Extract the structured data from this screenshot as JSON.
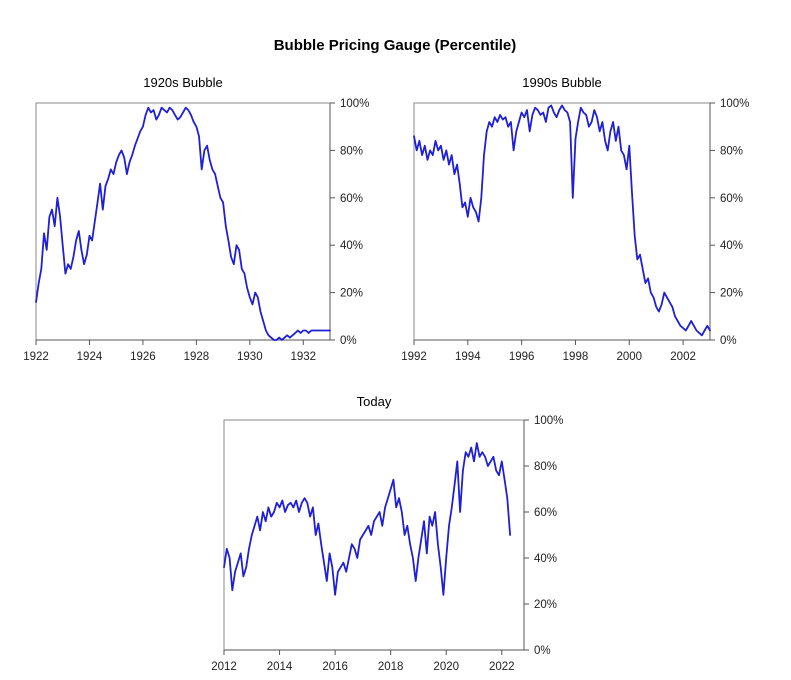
{
  "title": "Bubble Pricing Gauge (Percentile)",
  "colors": {
    "line": "#1f1fd6",
    "frame": "#8a8a8a"
  },
  "chart_data": [
    {
      "type": "line",
      "title": "1920s Bubble",
      "xlim": [
        1922,
        1933
      ],
      "ylim": [
        0,
        100
      ],
      "x_ticks": [
        1922,
        1924,
        1926,
        1928,
        1930,
        1932
      ],
      "y_ticks": [
        0,
        20,
        40,
        60,
        80,
        100
      ],
      "y_tick_labels": [
        "0%",
        "20%",
        "40%",
        "60%",
        "80%",
        "100%"
      ],
      "series": [
        {
          "x": [
            1922.0,
            1922.1,
            1922.2,
            1922.3,
            1922.4,
            1922.5,
            1922.6,
            1922.7,
            1922.8,
            1922.9,
            1923.0,
            1923.1,
            1923.2,
            1923.3,
            1923.4,
            1923.5,
            1923.6,
            1923.7,
            1923.8,
            1923.9,
            1924.0,
            1924.1,
            1924.2,
            1924.3,
            1924.4,
            1924.5,
            1924.6,
            1924.7,
            1924.8,
            1924.9,
            1925.0,
            1925.1,
            1925.2,
            1925.3,
            1925.4,
            1925.5,
            1925.6,
            1925.7,
            1925.8,
            1925.9,
            1926.0,
            1926.1,
            1926.2,
            1926.3,
            1926.4,
            1926.5,
            1926.6,
            1926.7,
            1926.8,
            1926.9,
            1927.0,
            1927.1,
            1927.2,
            1927.3,
            1927.4,
            1927.5,
            1927.6,
            1927.7,
            1927.8,
            1927.9,
            1928.0,
            1928.1,
            1928.2,
            1928.3,
            1928.4,
            1928.5,
            1928.6,
            1928.7,
            1928.8,
            1928.9,
            1929.0,
            1929.1,
            1929.2,
            1929.3,
            1929.4,
            1929.5,
            1929.6,
            1929.7,
            1929.8,
            1929.9,
            1930.0,
            1930.1,
            1930.2,
            1930.3,
            1930.4,
            1930.5,
            1930.6,
            1930.7,
            1930.8,
            1930.9,
            1931.0,
            1931.1,
            1931.2,
            1931.3,
            1931.4,
            1931.5,
            1931.6,
            1931.7,
            1931.8,
            1931.9,
            1932.0,
            1932.1,
            1932.2,
            1932.3,
            1932.4,
            1932.5,
            1932.6,
            1932.7,
            1932.8,
            1932.9,
            1933.0
          ],
          "y": [
            16,
            24,
            30,
            45,
            38,
            52,
            55,
            48,
            60,
            52,
            40,
            28,
            32,
            30,
            35,
            42,
            46,
            38,
            32,
            36,
            44,
            42,
            50,
            58,
            66,
            55,
            65,
            68,
            72,
            70,
            75,
            78,
            80,
            77,
            70,
            75,
            78,
            82,
            85,
            88,
            90,
            95,
            98,
            96,
            97,
            93,
            95,
            98,
            97,
            96,
            98,
            97,
            95,
            93,
            94,
            96,
            98,
            97,
            95,
            92,
            90,
            86,
            72,
            80,
            82,
            76,
            72,
            70,
            65,
            60,
            58,
            48,
            42,
            35,
            32,
            40,
            38,
            30,
            28,
            22,
            18,
            15,
            20,
            18,
            12,
            8,
            4,
            2,
            1,
            0,
            0,
            1,
            0,
            1,
            2,
            1,
            2,
            3,
            4,
            3,
            4,
            4,
            3,
            4,
            4,
            4,
            4,
            4,
            4,
            4,
            4
          ]
        }
      ]
    },
    {
      "type": "line",
      "title": "1990s Bubble",
      "xlim": [
        1992,
        2003
      ],
      "ylim": [
        0,
        100
      ],
      "x_ticks": [
        1992,
        1994,
        1996,
        1998,
        2000,
        2002
      ],
      "y_ticks": [
        0,
        20,
        40,
        60,
        80,
        100
      ],
      "y_tick_labels": [
        "0%",
        "20%",
        "40%",
        "60%",
        "80%",
        "100%"
      ],
      "series": [
        {
          "x": [
            1992.0,
            1992.1,
            1992.2,
            1992.3,
            1992.4,
            1992.5,
            1992.6,
            1992.7,
            1992.8,
            1992.9,
            1993.0,
            1993.1,
            1993.2,
            1993.3,
            1993.4,
            1993.5,
            1993.6,
            1993.7,
            1993.8,
            1993.9,
            1994.0,
            1994.1,
            1994.2,
            1994.3,
            1994.4,
            1994.5,
            1994.6,
            1994.7,
            1994.8,
            1994.9,
            1995.0,
            1995.1,
            1995.2,
            1995.3,
            1995.4,
            1995.5,
            1995.6,
            1995.7,
            1995.8,
            1995.9,
            1996.0,
            1996.1,
            1996.2,
            1996.3,
            1996.4,
            1996.5,
            1996.6,
            1996.7,
            1996.8,
            1996.9,
            1997.0,
            1997.1,
            1997.2,
            1997.3,
            1997.4,
            1997.5,
            1997.6,
            1997.7,
            1997.8,
            1997.9,
            1998.0,
            1998.1,
            1998.2,
            1998.3,
            1998.4,
            1998.5,
            1998.6,
            1998.7,
            1998.8,
            1998.9,
            1999.0,
            1999.1,
            1999.2,
            1999.3,
            1999.4,
            1999.5,
            1999.6,
            1999.7,
            1999.8,
            1999.9,
            2000.0,
            2000.1,
            2000.2,
            2000.3,
            2000.4,
            2000.5,
            2000.6,
            2000.7,
            2000.8,
            2000.9,
            2001.0,
            2001.1,
            2001.2,
            2001.3,
            2001.4,
            2001.5,
            2001.6,
            2001.7,
            2001.8,
            2001.9,
            2002.0,
            2002.1,
            2002.2,
            2002.3,
            2002.4,
            2002.5,
            2002.6,
            2002.7,
            2002.8,
            2002.9,
            2003.0
          ],
          "y": [
            86,
            80,
            84,
            78,
            82,
            76,
            80,
            78,
            84,
            80,
            82,
            76,
            80,
            74,
            78,
            70,
            74,
            66,
            56,
            58,
            52,
            60,
            56,
            54,
            50,
            60,
            78,
            88,
            92,
            90,
            94,
            92,
            95,
            93,
            94,
            90,
            92,
            80,
            88,
            92,
            96,
            94,
            97,
            88,
            95,
            98,
            97,
            95,
            96,
            92,
            98,
            99,
            96,
            94,
            97,
            99,
            97,
            96,
            92,
            60,
            85,
            92,
            98,
            96,
            95,
            90,
            92,
            97,
            94,
            88,
            92,
            84,
            80,
            88,
            92,
            84,
            90,
            80,
            78,
            72,
            82,
            62,
            44,
            34,
            36,
            30,
            24,
            26,
            20,
            18,
            14,
            12,
            15,
            20,
            18,
            16,
            14,
            10,
            8,
            6,
            5,
            4,
            6,
            8,
            6,
            4,
            3,
            2,
            4,
            6,
            4
          ]
        }
      ]
    },
    {
      "type": "line",
      "title": "Today",
      "xlim": [
        2012,
        2022.8
      ],
      "ylim": [
        0,
        100
      ],
      "x_ticks": [
        2012,
        2014,
        2016,
        2018,
        2020,
        2022
      ],
      "y_ticks": [
        0,
        20,
        40,
        60,
        80,
        100
      ],
      "y_tick_labels": [
        "0%",
        "20%",
        "40%",
        "60%",
        "80%",
        "100%"
      ],
      "series": [
        {
          "x": [
            2012.0,
            2012.1,
            2012.2,
            2012.3,
            2012.4,
            2012.5,
            2012.6,
            2012.7,
            2012.8,
            2012.9,
            2013.0,
            2013.1,
            2013.2,
            2013.3,
            2013.4,
            2013.5,
            2013.6,
            2013.7,
            2013.8,
            2013.9,
            2014.0,
            2014.1,
            2014.2,
            2014.3,
            2014.4,
            2014.5,
            2014.6,
            2014.7,
            2014.8,
            2014.9,
            2015.0,
            2015.1,
            2015.2,
            2015.3,
            2015.4,
            2015.5,
            2015.6,
            2015.7,
            2015.8,
            2015.9,
            2016.0,
            2016.1,
            2016.2,
            2016.3,
            2016.4,
            2016.5,
            2016.6,
            2016.7,
            2016.8,
            2016.9,
            2017.0,
            2017.1,
            2017.2,
            2017.3,
            2017.4,
            2017.5,
            2017.6,
            2017.7,
            2017.8,
            2017.9,
            2018.0,
            2018.1,
            2018.2,
            2018.3,
            2018.4,
            2018.5,
            2018.6,
            2018.7,
            2018.8,
            2018.9,
            2019.0,
            2019.1,
            2019.2,
            2019.3,
            2019.4,
            2019.5,
            2019.6,
            2019.7,
            2019.8,
            2019.9,
            2020.0,
            2020.1,
            2020.2,
            2020.3,
            2020.4,
            2020.5,
            2020.6,
            2020.7,
            2020.8,
            2020.9,
            2021.0,
            2021.1,
            2021.2,
            2021.3,
            2021.4,
            2021.5,
            2021.6,
            2021.7,
            2021.8,
            2021.9,
            2022.0,
            2022.1,
            2022.2,
            2022.3
          ],
          "y": [
            36,
            44,
            40,
            26,
            34,
            38,
            42,
            32,
            36,
            44,
            50,
            54,
            58,
            52,
            60,
            56,
            62,
            58,
            60,
            64,
            62,
            65,
            60,
            63,
            64,
            62,
            65,
            60,
            64,
            66,
            64,
            58,
            62,
            50,
            55,
            46,
            38,
            30,
            42,
            36,
            24,
            34,
            36,
            38,
            34,
            40,
            46,
            44,
            40,
            48,
            50,
            52,
            54,
            50,
            56,
            58,
            60,
            54,
            62,
            66,
            70,
            74,
            62,
            66,
            60,
            50,
            54,
            46,
            40,
            30,
            40,
            48,
            56,
            42,
            58,
            54,
            60,
            46,
            36,
            24,
            40,
            54,
            62,
            72,
            82,
            60,
            78,
            86,
            84,
            88,
            82,
            90,
            84,
            86,
            84,
            80,
            82,
            84,
            78,
            76,
            82,
            74,
            66,
            50
          ]
        }
      ]
    }
  ]
}
